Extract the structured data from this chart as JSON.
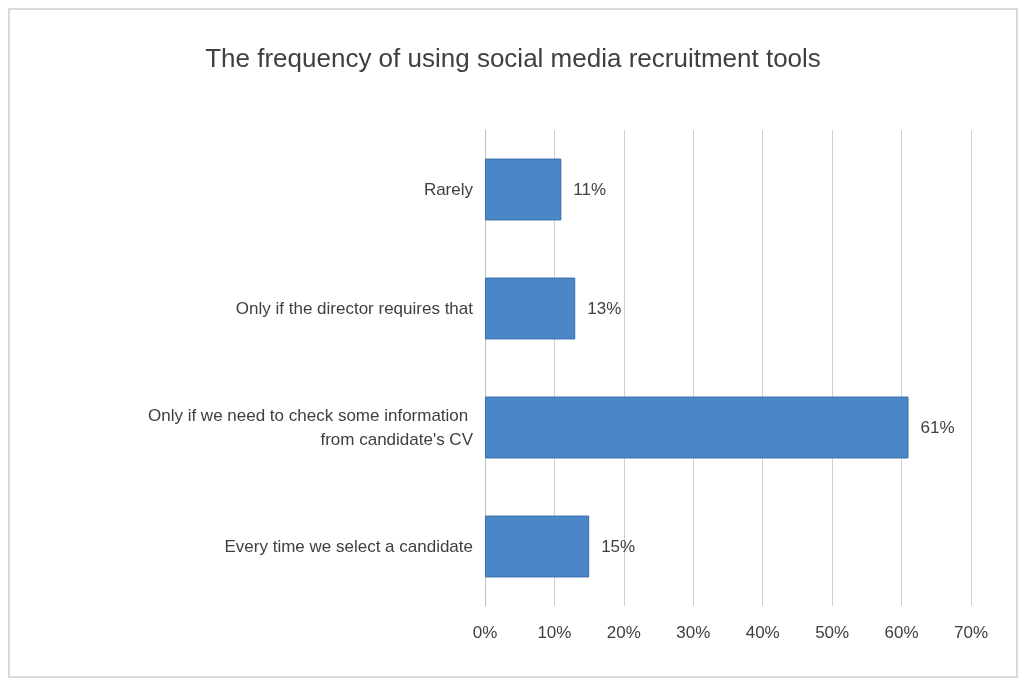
{
  "chart_data": {
    "type": "bar",
    "orientation": "horizontal",
    "title": "The frequency of using social media recruitment tools",
    "categories": [
      "Rarely",
      "Only if the director requires that",
      "Only if we need to check some information from candidate's CV",
      "Every time we select a candidate"
    ],
    "values": [
      11,
      13,
      61,
      15
    ],
    "value_labels": [
      "11%",
      "13%",
      "61%",
      "15%"
    ],
    "color": "#4a86c8",
    "xlim": [
      0,
      70
    ],
    "xticks": [
      {
        "value": 0,
        "label": "0%"
      },
      {
        "value": 10,
        "label": "10%"
      },
      {
        "value": 20,
        "label": "20%"
      },
      {
        "value": 30,
        "label": "30%"
      },
      {
        "value": 40,
        "label": "40%"
      },
      {
        "value": 50,
        "label": "50%"
      },
      {
        "value": 60,
        "label": "60%"
      },
      {
        "value": 70,
        "label": "70%"
      }
    ],
    "grid": "x"
  }
}
